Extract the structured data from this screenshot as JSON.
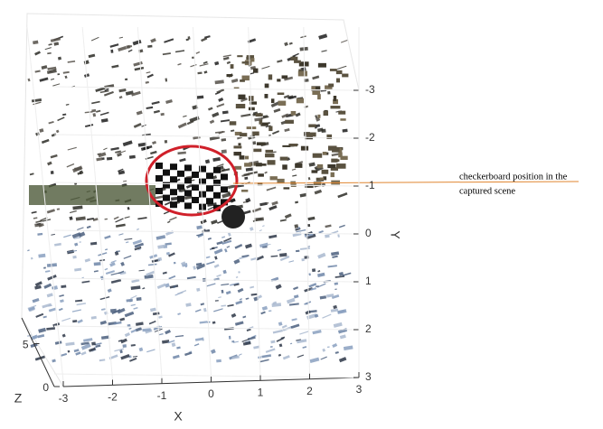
{
  "axes": {
    "x": {
      "label": "X",
      "lim": [
        -3,
        3
      ],
      "ticks": [
        -3,
        -2,
        -1,
        0,
        1,
        2,
        3
      ]
    },
    "y": {
      "label": "Y",
      "lim": [
        -3,
        3
      ],
      "ticks": [
        -3,
        -2,
        -1,
        0,
        1,
        2,
        3
      ]
    },
    "z": {
      "label": "Z",
      "lim": [
        0,
        8
      ],
      "ticks": [
        0,
        5
      ]
    }
  },
  "annotation": {
    "lines": [
      "checkerboard position in the",
      "captured scene"
    ]
  }
}
